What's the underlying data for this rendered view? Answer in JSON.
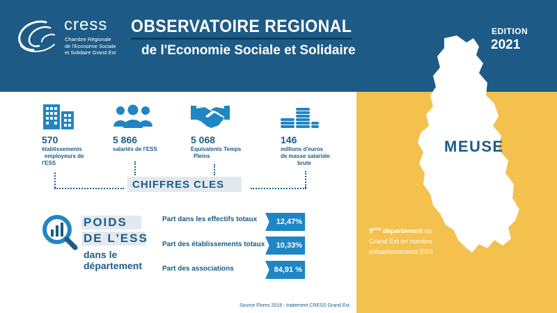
{
  "header": {
    "brand": "cress",
    "brand_sub": [
      "Chambre Régionale",
      "de l'Economie Sociale",
      "et Solidaire Grand Est"
    ],
    "title_line1": "OBSERVATOIRE REGIONAL",
    "title_line2": "de l'Economie Sociale et Solidaire",
    "edition_label": "EDITION",
    "edition_year": "2021"
  },
  "department": {
    "name": "MEUSE",
    "rank_number": "9",
    "rank_suffix": "ème",
    "rank_word": "département",
    "rank_tail": "du",
    "rank_line2": "Grand Est  en nombre",
    "rank_line3": "d'établissements ESS"
  },
  "stats": [
    {
      "value": "570",
      "label": [
        "établissements",
        "employeurs de",
        "l'ESS"
      ],
      "icon": "buildings-icon"
    },
    {
      "value": "5 866",
      "label": [
        "salariés de l'ESS"
      ],
      "icon": "people-icon"
    },
    {
      "value": "5 068",
      "label": [
        "Equivalents Temps",
        "Pleins"
      ],
      "icon": "handshake-icon"
    },
    {
      "value": "146",
      "label": [
        "millions d'euros",
        "de masse salariale",
        "brute"
      ],
      "icon": "coins-icon"
    }
  ],
  "chiffres_cles": "CHIFFRES CLES",
  "poids": {
    "line1": "POIDS",
    "line2": "DE L'ESS",
    "line3": "dans le",
    "line4": "département",
    "icon": "magnifier-chart-icon"
  },
  "parts": [
    {
      "prefix": "Part",
      "label": " dans les effectifs totaux",
      "value": "12,47%",
      "value_pct": 12.47
    },
    {
      "prefix": "Part",
      "label": " des établissements totaux",
      "value": "10,33%",
      "value_pct": 10.33
    },
    {
      "prefix": "Part",
      "label": " des associations",
      "value": "84,91 %",
      "value_pct": 84.91
    }
  ],
  "source": "Source Flores 2018 - traitement CRESS Grand Est",
  "colors": {
    "primary": "#1d5b86",
    "accent": "#2085c3",
    "panel": "#f4c14e",
    "light": "#e3e9ef"
  }
}
